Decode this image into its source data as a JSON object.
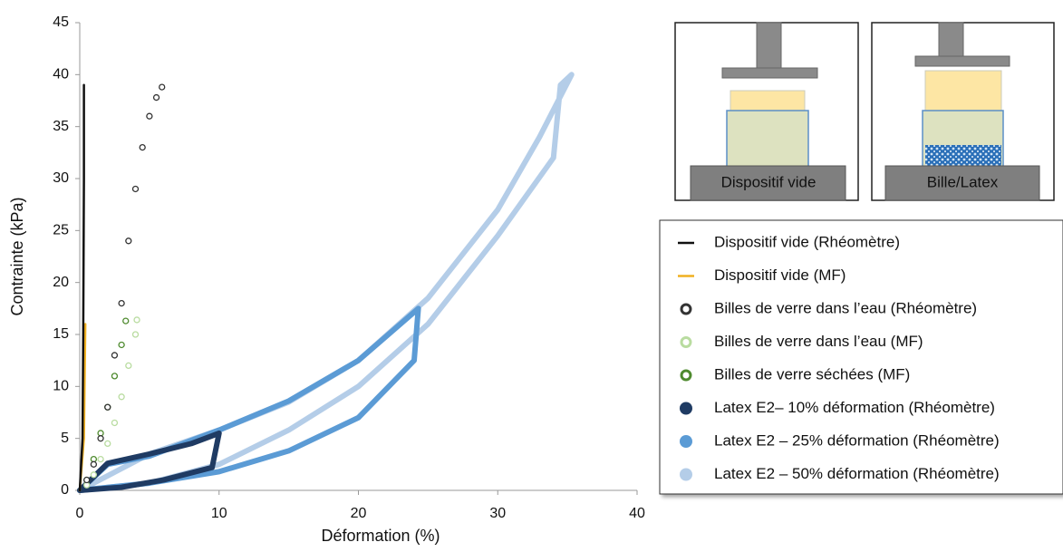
{
  "chart_data": {
    "type": "scatter",
    "xlabel": "Déformation (%)",
    "ylabel": "Contrainte (kPa)",
    "xlim": [
      0,
      40
    ],
    "xticks": [
      0,
      10,
      20,
      30,
      40
    ],
    "ylim": [
      0,
      45
    ],
    "yticks": [
      0,
      5,
      10,
      15,
      20,
      25,
      30,
      35,
      40,
      45
    ],
    "grid": false,
    "legend": "right",
    "series": [
      {
        "name": "Dispositif vide (Rhéomètre)",
        "color": "#111111",
        "style": "line",
        "x": [
          0,
          0.2,
          0.25,
          0.3,
          0.3
        ],
        "values": [
          0,
          5,
          15,
          30,
          39
        ]
      },
      {
        "name": "Dispositif vide (MF)",
        "color": "#f0b020",
        "style": "line",
        "x": [
          0,
          0.3,
          0.4
        ],
        "values": [
          0,
          5,
          16
        ]
      },
      {
        "name": "Billes de verre dans l’eau (Rhéomètre)",
        "color": "#333333",
        "style": "open-circle",
        "x": [
          0.5,
          1,
          1.5,
          2,
          2.5,
          3,
          3.5,
          4,
          4.5,
          5,
          5.5,
          5.9
        ],
        "values": [
          1,
          2.5,
          5,
          8,
          13,
          18,
          24,
          29,
          33,
          36,
          37.8,
          38.8
        ]
      },
      {
        "name": "Billes de verre dans l’eau (MF)",
        "color": "#b9dca0",
        "style": "open-circle",
        "x": [
          0.5,
          1,
          1.5,
          2,
          2.5,
          3,
          3.5,
          4,
          4.1
        ],
        "values": [
          0.5,
          1.5,
          3,
          4.5,
          6.5,
          9,
          12,
          15,
          16.4
        ]
      },
      {
        "name": "Billes de verre séchées (MF)",
        "color": "#4e8a2e",
        "style": "open-circle",
        "x": [
          0.5,
          1,
          1.5,
          2,
          2.5,
          3,
          3.3
        ],
        "values": [
          1,
          3,
          5.5,
          8,
          11,
          14,
          16.3
        ]
      },
      {
        "name": "Latex E2– 10% déformation (Rhéomètre)",
        "color": "#1f3b63",
        "style": "filled-circle",
        "x": [
          0,
          2,
          5,
          8,
          10,
          9.5,
          6,
          3,
          0
        ],
        "values": [
          0,
          2.6,
          3.5,
          4.5,
          5.5,
          2.2,
          1,
          0.3,
          0
        ]
      },
      {
        "name": "Latex E2 – 25% déformation (Rhéomètre)",
        "color": "#5b9bd5",
        "style": "filled-circle",
        "x": [
          0,
          2,
          5,
          10,
          15,
          20,
          24.3,
          24,
          20,
          15,
          10,
          5,
          0
        ],
        "values": [
          0,
          2.5,
          3.3,
          5.8,
          8.6,
          12.5,
          17.5,
          12.5,
          7,
          3.8,
          1.8,
          0.7,
          0
        ]
      },
      {
        "name": "Latex E2 – 50% déformation (Rhéomètre)",
        "color": "#b4cde8",
        "style": "filled-circle",
        "x": [
          0,
          5,
          10,
          15,
          20,
          25,
          30,
          33,
          35.3,
          34.5,
          34,
          30,
          25,
          20,
          15,
          10,
          5,
          0
        ],
        "values": [
          0,
          3.5,
          5.8,
          8.5,
          12.5,
          18.5,
          27,
          34,
          40,
          39,
          32,
          24.5,
          16,
          10,
          5.8,
          2.5,
          0.7,
          0
        ]
      }
    ]
  },
  "insets": [
    {
      "label": "Dispositif vide"
    },
    {
      "label": "Bille/Latex"
    }
  ]
}
